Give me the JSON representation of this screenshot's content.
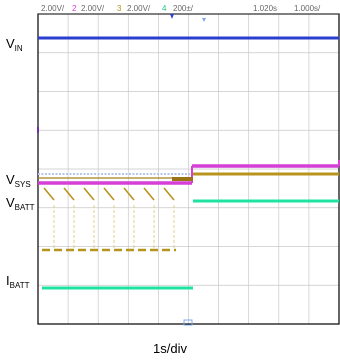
{
  "chart_data": {
    "type": "line",
    "title": "",
    "xlabel": "1s/div",
    "header": {
      "ch1": "2.00V/",
      "ch2_num": "2",
      "ch2": "2.00V/",
      "ch3_num": "3",
      "ch3": "2.00V/",
      "ch4_num": "4",
      "ch4": "200±/",
      "time": "1.020s",
      "timebase": "1.000s/"
    },
    "trace_labels": {
      "vin": {
        "main": "V",
        "sub": "IN"
      },
      "vsys": {
        "main": "V",
        "sub": "SYS"
      },
      "vbatt": {
        "main": "V",
        "sub": "BATT"
      },
      "ibatt": {
        "main": "I",
        "sub": "BATT"
      }
    },
    "colors": {
      "vin": "#2a3fd0",
      "vsys": "#d63fd6",
      "vbatt": "#b8941e",
      "ibatt": "#1fe3a0",
      "grid": "#c8c8c8",
      "frame": "#000000"
    },
    "series": [
      {
        "name": "VIN",
        "points": [
          [
            0,
            0.75
          ],
          [
            10,
            0.75
          ]
        ]
      },
      {
        "name": "VSYS",
        "points": [
          [
            0,
            0.5
          ],
          [
            5,
            0.5
          ],
          [
            5,
            0.52
          ],
          [
            10,
            0.52
          ]
        ]
      },
      {
        "name": "VBATT",
        "points": [
          [
            0,
            0.52
          ],
          [
            0.8,
            0.45
          ],
          [
            1.0,
            0.38
          ],
          [
            1.02,
            0.52
          ],
          [
            1.8,
            0.45
          ],
          [
            2.0,
            0.38
          ],
          [
            2.02,
            0.52
          ],
          [
            2.8,
            0.45
          ],
          [
            3.0,
            0.38
          ],
          [
            3.02,
            0.52
          ],
          [
            3.8,
            0.45
          ],
          [
            4.0,
            0.38
          ],
          [
            4.02,
            0.52
          ],
          [
            4.5,
            0.52
          ],
          [
            5,
            0.515
          ],
          [
            10,
            0.515
          ]
        ]
      },
      {
        "name": "IBATT",
        "points": [
          [
            0,
            0.1
          ],
          [
            5,
            0.1
          ],
          [
            5,
            0.38
          ],
          [
            10,
            0.38
          ]
        ]
      }
    ]
  }
}
